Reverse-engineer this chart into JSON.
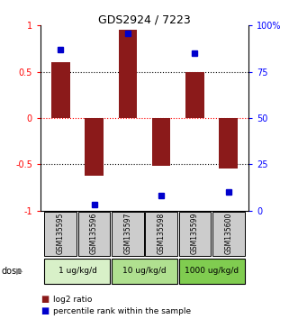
{
  "title": "GDS2924 / 7223",
  "samples": [
    "GSM135595",
    "GSM135596",
    "GSM135597",
    "GSM135598",
    "GSM135599",
    "GSM135600"
  ],
  "log2_ratios": [
    0.6,
    -0.62,
    0.95,
    -0.52,
    0.5,
    -0.55
  ],
  "percentiles": [
    87,
    3,
    96,
    8,
    85,
    10
  ],
  "bar_color": "#8B1A1A",
  "percentile_color": "#0000CC",
  "ylim_left": [
    -1,
    1
  ],
  "ylim_right": [
    0,
    100
  ],
  "yticks_left": [
    -1,
    -0.5,
    0,
    0.5,
    1
  ],
  "yticks_right": [
    0,
    25,
    50,
    75,
    100
  ],
  "ytick_labels_left": [
    "-1",
    "-0.5",
    "0",
    "0.5",
    "1"
  ],
  "ytick_labels_right": [
    "0",
    "25",
    "50",
    "75",
    "100%"
  ],
  "hlines": [
    -0.5,
    0,
    0.5
  ],
  "hline_colors": [
    "black",
    "red",
    "black"
  ],
  "dose_groups": [
    {
      "label": "1 ug/kg/d",
      "samples": [
        0,
        1
      ],
      "color": "#d8f0c8"
    },
    {
      "label": "10 ug/kg/d",
      "samples": [
        2,
        3
      ],
      "color": "#b0e090"
    },
    {
      "label": "1000 ug/kg/d",
      "samples": [
        4,
        5
      ],
      "color": "#80cc50"
    }
  ],
  "dose_label": "dose",
  "legend_red_label": "log2 ratio",
  "legend_blue_label": "percentile rank within the sample",
  "bg_color": "#ffffff",
  "sample_box_color": "#cccccc",
  "bar_width": 0.55
}
